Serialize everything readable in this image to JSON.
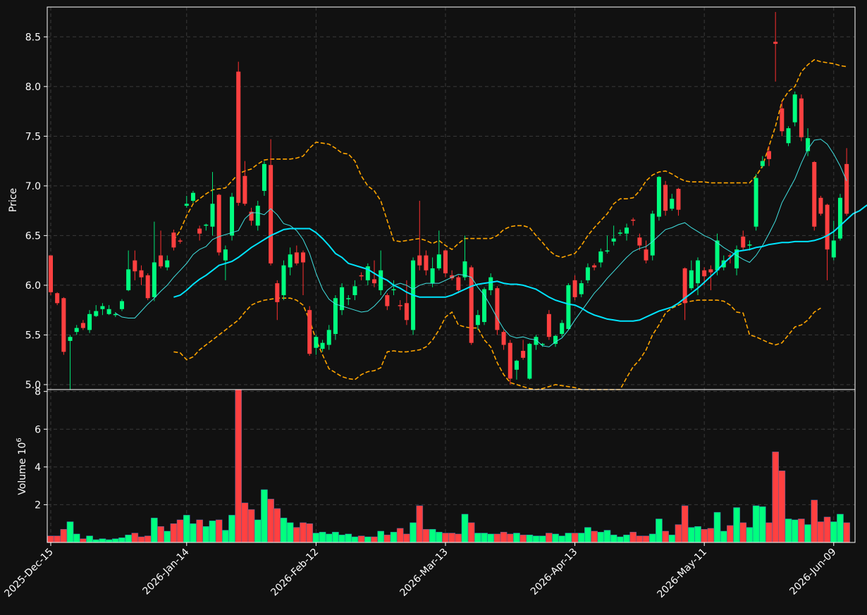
{
  "chart_data": {
    "type": "candlestick",
    "colors": {
      "background": "#111111",
      "up": "#00ff7f",
      "down": "#ff4040",
      "wick_up": "#00e676",
      "wick_down": "#ff3030",
      "ma_fast": "#40e0e0",
      "ma_slow": "#00e5ff",
      "bollinger": "#ffa500",
      "grid": "#3a3a3a",
      "axis": "#ffffff"
    },
    "price_panel": {
      "ylabel": "Price",
      "ylim": [
        4.95,
        8.8
      ],
      "yticks": [
        "5.0",
        "5.5",
        "6.0",
        "6.5",
        "7.0",
        "7.5",
        "8.0",
        "8.5"
      ],
      "grid": true
    },
    "volume_panel": {
      "ylabel": "Volume",
      "ylabel_exponent": "10^6",
      "ylim": [
        0,
        8.1
      ],
      "yticks": [
        "2",
        "4",
        "6",
        "8"
      ],
      "grid": true
    },
    "x_tick_labels": [
      "2025-Dec-15",
      "2026-Jan-14",
      "2026-Feb-12",
      "2026-Mar-13",
      "2026-Apr-13",
      "2026-May-11",
      "2026-Jun-09"
    ],
    "x_tick_indices": [
      0,
      21,
      41,
      61,
      81,
      101,
      121
    ],
    "candles": [
      [
        6.3,
        5.93,
        6.3,
        5.9
      ],
      [
        5.92,
        5.82,
        5.93,
        5.8
      ],
      [
        5.87,
        5.33,
        5.88,
        5.3
      ],
      [
        5.44,
        5.48,
        5.5,
        4.95
      ],
      [
        5.53,
        5.57,
        5.6,
        5.5
      ],
      [
        5.62,
        5.57,
        5.65,
        5.55
      ],
      [
        5.55,
        5.71,
        5.75,
        5.52
      ],
      [
        5.69,
        5.74,
        5.8,
        5.68
      ],
      [
        5.76,
        5.79,
        5.82,
        5.7
      ],
      [
        5.71,
        5.76,
        5.8,
        5.7
      ],
      [
        5.7,
        5.71,
        5.73,
        5.68
      ],
      [
        5.76,
        5.84,
        5.86,
        5.74
      ],
      [
        5.95,
        6.16,
        6.35,
        5.94
      ],
      [
        6.25,
        6.14,
        6.35,
        6.05
      ],
      [
        6.15,
        6.08,
        6.2,
        6.0
      ],
      [
        6.1,
        5.87,
        6.12,
        5.85
      ],
      [
        5.88,
        6.23,
        6.64,
        5.84
      ],
      [
        6.3,
        6.19,
        6.55,
        6.17
      ],
      [
        6.18,
        6.25,
        6.3,
        6.15
      ],
      [
        6.53,
        6.38,
        6.56,
        6.35
      ],
      [
        6.45,
        6.44,
        6.47,
        6.42
      ],
      [
        6.8,
        6.82,
        6.9,
        6.78
      ],
      [
        6.85,
        6.93,
        6.95,
        6.83
      ],
      [
        6.57,
        6.52,
        6.6,
        6.45
      ],
      [
        6.6,
        6.61,
        6.62,
        6.55
      ],
      [
        6.59,
        6.82,
        7.14,
        6.5
      ],
      [
        6.91,
        6.33,
        6.92,
        6.3
      ],
      [
        6.25,
        6.36,
        6.4,
        6.05
      ],
      [
        6.5,
        6.89,
        6.93,
        6.45
      ],
      [
        8.15,
        6.83,
        8.25,
        6.8
      ],
      [
        7.1,
        6.82,
        7.25,
        6.8
      ],
      [
        6.74,
        6.65,
        6.78,
        6.6
      ],
      [
        6.6,
        6.8,
        6.85,
        6.55
      ],
      [
        6.95,
        7.22,
        7.25,
        6.9
      ],
      [
        7.21,
        6.22,
        7.47,
        6.2
      ],
      [
        6.02,
        5.83,
        6.05,
        5.65
      ],
      [
        5.9,
        6.2,
        6.25,
        5.85
      ],
      [
        6.18,
        6.31,
        6.38,
        6.1
      ],
      [
        6.33,
        6.22,
        6.4,
        6.2
      ],
      [
        6.33,
        6.23,
        6.35,
        5.9
      ],
      [
        5.75,
        5.31,
        5.79,
        5.29
      ],
      [
        5.37,
        5.48,
        5.5,
        5.3
      ],
      [
        5.36,
        5.42,
        5.45,
        5.33
      ],
      [
        5.4,
        5.55,
        5.6,
        5.35
      ],
      [
        5.51,
        5.87,
        5.9,
        5.45
      ],
      [
        5.75,
        5.98,
        6.02,
        5.7
      ],
      [
        5.86,
        5.87,
        5.9,
        5.8
      ],
      [
        5.9,
        5.99,
        6.05,
        5.85
      ],
      [
        6.1,
        6.09,
        6.13,
        6.05
      ],
      [
        6.05,
        6.19,
        6.22,
        6.0
      ],
      [
        6.06,
        6.02,
        6.25,
        5.98
      ],
      [
        5.95,
        6.15,
        6.35,
        5.9
      ],
      [
        5.9,
        5.79,
        5.92,
        5.75
      ],
      [
        5.95,
        5.96,
        6.05,
        5.9
      ],
      [
        5.8,
        5.79,
        5.85,
        5.75
      ],
      [
        5.82,
        5.65,
        6.05,
        5.6
      ],
      [
        5.55,
        6.25,
        6.28,
        5.5
      ],
      [
        6.3,
        6.2,
        6.85,
        6.15
      ],
      [
        6.3,
        6.15,
        6.35,
        6.1
      ],
      [
        6.02,
        6.17,
        6.28,
        5.98
      ],
      [
        6.17,
        6.31,
        6.55,
        6.15
      ],
      [
        6.35,
        6.12,
        6.36,
        6.08
      ],
      [
        6.1,
        6.07,
        6.15,
        6.05
      ],
      [
        6.08,
        5.95,
        6.1,
        5.92
      ],
      [
        6.08,
        6.24,
        6.5,
        6.05
      ],
      [
        6.18,
        5.42,
        6.2,
        5.4
      ],
      [
        5.6,
        5.7,
        5.75,
        5.55
      ],
      [
        5.63,
        5.96,
        5.98,
        5.6
      ],
      [
        5.95,
        6.08,
        6.12,
        5.9
      ],
      [
        5.97,
        5.55,
        5.99,
        5.5
      ],
      [
        5.53,
        5.4,
        5.55,
        5.35
      ],
      [
        5.42,
        5.06,
        5.45,
        5.0
      ],
      [
        5.15,
        5.24,
        5.25,
        5.05
      ],
      [
        5.34,
        5.27,
        5.45,
        5.25
      ],
      [
        5.06,
        5.41,
        5.42,
        5.05
      ],
      [
        5.4,
        5.48,
        5.5,
        5.35
      ],
      [
        5.4,
        5.41,
        5.42,
        5.38
      ],
      [
        5.71,
        5.48,
        5.75,
        5.45
      ],
      [
        5.41,
        5.49,
        5.5,
        5.38
      ],
      [
        5.51,
        5.62,
        5.65,
        5.48
      ],
      [
        5.56,
        6.0,
        6.02,
        5.55
      ],
      [
        6.05,
        5.88,
        6.1,
        5.85
      ],
      [
        5.91,
        6.02,
        6.05,
        5.88
      ],
      [
        6.05,
        6.18,
        6.22,
        6.02
      ],
      [
        6.2,
        6.18,
        6.22,
        6.15
      ],
      [
        6.23,
        6.34,
        6.37,
        6.18
      ],
      [
        6.35,
        6.35,
        6.5,
        6.32
      ],
      [
        6.44,
        6.47,
        6.6,
        6.4
      ],
      [
        6.52,
        6.53,
        6.56,
        6.5
      ],
      [
        6.52,
        6.58,
        6.62,
        6.45
      ],
      [
        6.66,
        6.65,
        6.68,
        6.6
      ],
      [
        6.48,
        6.4,
        6.52,
        6.35
      ],
      [
        6.36,
        6.25,
        6.45,
        6.22
      ],
      [
        6.3,
        6.72,
        6.75,
        6.25
      ],
      [
        6.69,
        7.09,
        7.1,
        6.65
      ],
      [
        7.01,
        6.75,
        7.05,
        6.7
      ],
      [
        6.77,
        6.87,
        6.92,
        6.75
      ],
      [
        6.97,
        6.76,
        6.98,
        6.7
      ],
      [
        6.17,
        5.82,
        6.18,
        5.65
      ],
      [
        5.97,
        6.15,
        6.25,
        5.95
      ],
      [
        6.02,
        6.25,
        6.28,
        5.9
      ],
      [
        6.15,
        6.09,
        6.18,
        6.0
      ],
      [
        6.16,
        6.13,
        6.2,
        5.95
      ],
      [
        6.15,
        6.45,
        6.52,
        6.1
      ],
      [
        6.18,
        6.25,
        6.3,
        6.15
      ],
      [
        6.3,
        6.29,
        6.32,
        6.22
      ],
      [
        6.17,
        6.36,
        6.4,
        6.1
      ],
      [
        6.49,
        6.38,
        6.55,
        6.35
      ],
      [
        6.4,
        6.41,
        6.45,
        6.35
      ],
      [
        6.59,
        7.08,
        7.12,
        6.55
      ],
      [
        7.2,
        7.25,
        7.3,
        7.18
      ],
      [
        7.35,
        7.27,
        7.4,
        7.2
      ],
      [
        8.45,
        8.43,
        8.75,
        8.05
      ],
      [
        7.78,
        7.55,
        7.85,
        7.5
      ],
      [
        7.43,
        7.58,
        7.6,
        7.4
      ],
      [
        7.64,
        7.92,
        7.95,
        7.6
      ],
      [
        7.88,
        7.49,
        7.92,
        7.45
      ],
      [
        7.35,
        7.48,
        7.58,
        7.3
      ],
      [
        7.24,
        6.59,
        7.25,
        6.55
      ],
      [
        6.88,
        6.72,
        6.9,
        6.7
      ],
      [
        6.81,
        6.36,
        6.82,
        6.05
      ],
      [
        6.28,
        6.45,
        6.65,
        6.25
      ],
      [
        6.47,
        6.88,
        6.92,
        6.45
      ],
      [
        7.22,
        6.72,
        7.38,
        6.7
      ]
    ],
    "volume_millions": [
      0.35,
      0.35,
      0.7,
      1.1,
      0.45,
      0.2,
      0.35,
      0.15,
      0.2,
      0.15,
      0.2,
      0.25,
      0.4,
      0.5,
      0.3,
      0.35,
      1.3,
      0.85,
      0.6,
      1.0,
      1.2,
      1.45,
      1.0,
      1.2,
      0.85,
      1.15,
      1.2,
      0.65,
      1.45,
      8.1,
      2.1,
      1.75,
      1.2,
      2.8,
      2.3,
      1.8,
      1.3,
      1.05,
      0.8,
      1.05,
      1.0,
      0.5,
      0.55,
      0.45,
      0.55,
      0.4,
      0.45,
      0.3,
      0.35,
      0.3,
      0.3,
      0.6,
      0.4,
      0.55,
      0.75,
      0.45,
      1.05,
      1.95,
      0.7,
      0.7,
      0.55,
      0.5,
      0.5,
      0.45,
      1.5,
      1.05,
      0.5,
      0.5,
      0.45,
      0.45,
      0.55,
      0.45,
      0.5,
      0.4,
      0.4,
      0.35,
      0.35,
      0.5,
      0.45,
      0.35,
      0.5,
      0.5,
      0.5,
      0.8,
      0.6,
      0.55,
      0.65,
      0.4,
      0.3,
      0.4,
      0.55,
      0.35,
      0.35,
      0.45,
      1.25,
      0.6,
      0.4,
      0.95,
      1.95,
      0.8,
      0.85,
      0.7,
      0.75,
      1.6,
      0.6,
      0.9,
      1.85,
      1.05,
      0.8,
      1.95,
      1.9,
      1.05,
      4.8,
      3.8,
      1.25,
      1.2,
      1.25,
      0.95,
      2.25,
      1.1,
      1.35,
      1.1,
      1.5,
      1.05
    ],
    "ma_fast": [
      null,
      null,
      null,
      null,
      null,
      null,
      null,
      null,
      null,
      null,
      5.72,
      5.68,
      5.67,
      5.67,
      5.74,
      5.81,
      5.87,
      5.94,
      6.0,
      6.08,
      6.15,
      6.22,
      6.31,
      6.36,
      6.39,
      6.46,
      6.49,
      6.51,
      6.53,
      6.55,
      6.67,
      6.73,
      6.73,
      6.71,
      6.77,
      6.71,
      6.62,
      6.6,
      6.55,
      6.46,
      6.32,
      6.12,
      5.96,
      5.86,
      5.81,
      5.79,
      5.77,
      5.75,
      5.73,
      5.74,
      5.79,
      5.86,
      5.95,
      6.0,
      6.02,
      6.0,
      5.96,
      6.0,
      6.02,
      6.02,
      6.02,
      6.05,
      6.08,
      6.11,
      6.1,
      6.08,
      5.98,
      5.9,
      5.79,
      5.67,
      5.56,
      5.49,
      5.47,
      5.48,
      5.46,
      5.45,
      5.39,
      5.38,
      5.43,
      5.47,
      5.55,
      5.65,
      5.74,
      5.83,
      5.92,
      5.99,
      6.07,
      6.14,
      6.21,
      6.28,
      6.34,
      6.37,
      6.39,
      6.44,
      6.5,
      6.56,
      6.58,
      6.61,
      6.63,
      6.58,
      6.54,
      6.5,
      6.47,
      6.43,
      6.38,
      6.34,
      6.3,
      6.26,
      6.23,
      6.3,
      6.4,
      6.52,
      6.65,
      6.83,
      6.95,
      7.07,
      7.23,
      7.37,
      7.46,
      7.47,
      7.42,
      7.32,
      7.2,
      7.05
    ],
    "ma_slow": [
      null,
      null,
      null,
      null,
      null,
      null,
      null,
      null,
      null,
      null,
      null,
      null,
      null,
      null,
      null,
      null,
      null,
      null,
      null,
      5.88,
      5.9,
      5.95,
      6.01,
      6.06,
      6.1,
      6.15,
      6.2,
      6.22,
      6.24,
      6.28,
      6.33,
      6.38,
      6.42,
      6.46,
      6.5,
      6.53,
      6.56,
      6.57,
      6.57,
      6.57,
      6.57,
      6.53,
      6.47,
      6.4,
      6.32,
      6.28,
      6.22,
      6.2,
      6.18,
      6.16,
      6.12,
      6.08,
      6.05,
      6.0,
      5.97,
      5.93,
      5.9,
      5.88,
      5.88,
      5.88,
      5.88,
      5.88,
      5.9,
      5.93,
      5.96,
      5.99,
      6.01,
      6.02,
      6.03,
      6.04,
      6.02,
      6.01,
      6.01,
      6.0,
      5.98,
      5.96,
      5.92,
      5.88,
      5.85,
      5.83,
      5.81,
      5.8,
      5.77,
      5.73,
      5.7,
      5.68,
      5.66,
      5.65,
      5.64,
      5.64,
      5.64,
      5.65,
      5.68,
      5.71,
      5.74,
      5.76,
      5.78,
      5.82,
      5.87,
      5.92,
      5.97,
      6.03,
      6.09,
      6.15,
      6.22,
      6.28,
      6.34,
      6.35,
      6.36,
      6.38,
      6.39,
      6.41,
      6.42,
      6.43,
      6.43,
      6.44,
      6.44,
      6.44,
      6.45,
      6.47,
      6.5,
      6.54,
      6.6,
      6.66,
      6.72,
      6.75,
      6.8,
      6.84,
      6.87
    ],
    "boll_upper": [
      null,
      null,
      null,
      null,
      null,
      null,
      null,
      null,
      null,
      null,
      null,
      null,
      null,
      null,
      null,
      null,
      null,
      null,
      null,
      6.45,
      6.55,
      6.7,
      6.82,
      6.87,
      6.92,
      6.96,
      6.97,
      6.98,
      7.05,
      7.12,
      7.15,
      7.17,
      7.22,
      7.26,
      7.27,
      7.27,
      7.27,
      7.27,
      7.28,
      7.3,
      7.38,
      7.44,
      7.43,
      7.42,
      7.38,
      7.33,
      7.32,
      7.25,
      7.1,
      7.0,
      6.95,
      6.85,
      6.65,
      6.45,
      6.44,
      6.45,
      6.46,
      6.47,
      6.45,
      6.42,
      6.45,
      6.4,
      6.36,
      6.42,
      6.47,
      6.47,
      6.47,
      6.47,
      6.47,
      6.5,
      6.56,
      6.59,
      6.6,
      6.6,
      6.58,
      6.5,
      6.43,
      6.35,
      6.3,
      6.28,
      6.3,
      6.32,
      6.4,
      6.5,
      6.58,
      6.65,
      6.72,
      6.82,
      6.87,
      6.87,
      6.88,
      6.95,
      7.05,
      7.11,
      7.14,
      7.15,
      7.12,
      7.08,
      7.05,
      7.04,
      7.04,
      7.04,
      7.03,
      7.03,
      7.03,
      7.03,
      7.03,
      7.03,
      7.03,
      7.1,
      7.2,
      7.4,
      7.6,
      7.85,
      7.95,
      8.0,
      8.15,
      8.22,
      8.27,
      8.25,
      8.24,
      8.23,
      8.21,
      8.2
    ],
    "boll_lower": [
      null,
      null,
      null,
      null,
      null,
      null,
      null,
      null,
      null,
      null,
      null,
      null,
      null,
      null,
      null,
      null,
      null,
      null,
      null,
      5.33,
      5.32,
      5.25,
      5.28,
      5.35,
      5.4,
      5.45,
      5.5,
      5.55,
      5.6,
      5.65,
      5.73,
      5.8,
      5.83,
      5.85,
      5.86,
      5.87,
      5.87,
      5.87,
      5.85,
      5.8,
      5.65,
      5.45,
      5.3,
      5.16,
      5.12,
      5.08,
      5.06,
      5.05,
      5.1,
      5.13,
      5.14,
      5.17,
      5.33,
      5.34,
      5.33,
      5.33,
      5.34,
      5.35,
      5.38,
      5.45,
      5.55,
      5.68,
      5.73,
      5.6,
      5.58,
      5.57,
      5.57,
      5.45,
      5.38,
      5.22,
      5.1,
      5.02,
      5.0,
      4.98,
      4.96,
      4.95,
      4.96,
      4.98,
      5.0,
      4.99,
      4.98,
      4.97,
      4.95,
      4.93,
      4.9,
      4.87,
      4.85,
      4.88,
      4.95,
      5.07,
      5.18,
      5.25,
      5.35,
      5.5,
      5.6,
      5.72,
      5.77,
      5.8,
      5.83,
      5.84,
      5.85,
      5.85,
      5.85,
      5.85,
      5.84,
      5.8,
      5.73,
      5.72,
      5.5,
      5.48,
      5.45,
      5.42,
      5.4,
      5.42,
      5.5,
      5.58,
      5.6,
      5.65,
      5.73,
      5.77
    ]
  }
}
